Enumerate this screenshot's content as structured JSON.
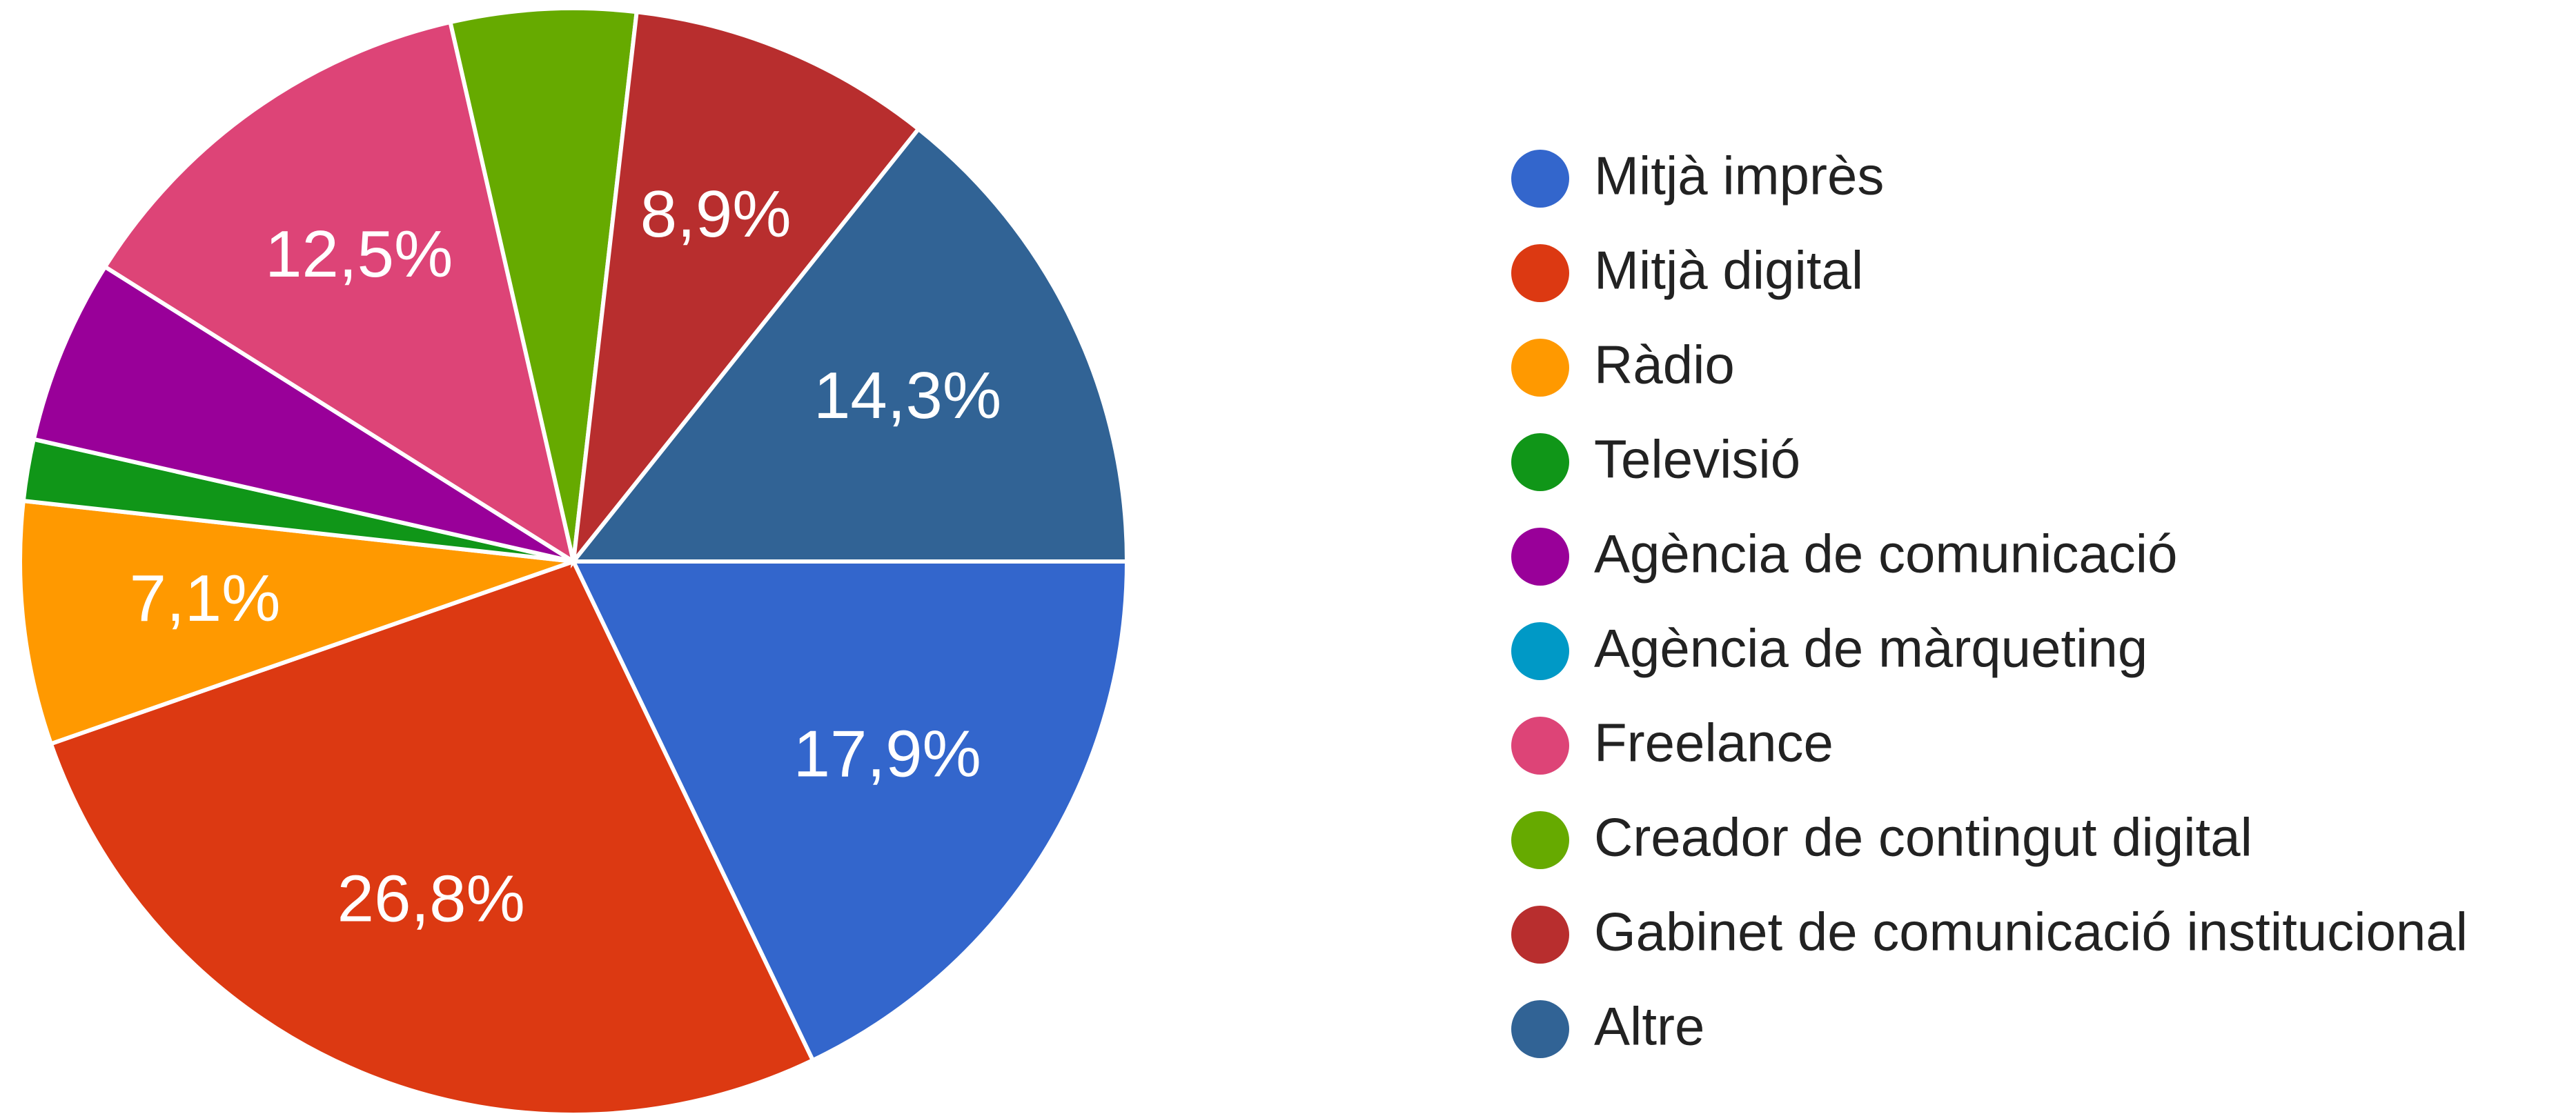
{
  "chart_data": {
    "type": "pie",
    "categories": [
      "Mitjà imprès",
      "Mitjà digital",
      "Ràdio",
      "Televisió",
      "Agència de comunicació",
      "Agència de màrqueting",
      "Freelance",
      "Creador de contingut digital",
      "Gabinet de comunicació institucional",
      "Altre"
    ],
    "values": [
      17.9,
      26.8,
      7.1,
      1.8,
      5.4,
      0,
      12.5,
      5.4,
      8.9,
      14.3
    ],
    "value_labels": [
      "17,9%",
      "26,8%",
      "7,1%",
      null,
      null,
      null,
      "12,5%",
      null,
      "8,9%",
      "14,3%"
    ],
    "colors": [
      "#3366cc",
      "#dc3912",
      "#ff9900",
      "#109618",
      "#990099",
      "#0099c6",
      "#dd4477",
      "#66aa00",
      "#b82e2e",
      "#316395"
    ],
    "legend": "right"
  }
}
